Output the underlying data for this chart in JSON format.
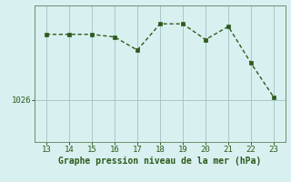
{
  "x": [
    13,
    14,
    15,
    16,
    17,
    18,
    19,
    20,
    21,
    22,
    23
  ],
  "y": [
    1038.5,
    1038.5,
    1038.5,
    1038.0,
    1035.5,
    1040.5,
    1040.5,
    1037.5,
    1040.0,
    1033.0,
    1026.5
  ],
  "line_color": "#2d5a1b",
  "marker_color": "#2d5a1b",
  "bg_color": "#d8f0f0",
  "grid_color": "#a8c8c8",
  "axis_color": "#6b8f6b",
  "xlabel": "Graphe pression niveau de la mer (hPa)",
  "xlabel_color": "#2d5a1b",
  "tick_label_color": "#2d5a1b",
  "ytick_values": [
    1026
  ],
  "ylim": [
    1018,
    1044
  ],
  "xlim": [
    12.5,
    23.5
  ],
  "xticks": [
    13,
    14,
    15,
    16,
    17,
    18,
    19,
    20,
    21,
    22,
    23
  ],
  "xlabel_fontsize": 7,
  "tick_fontsize": 6.5,
  "linewidth": 1.0,
  "markersize": 2.5
}
